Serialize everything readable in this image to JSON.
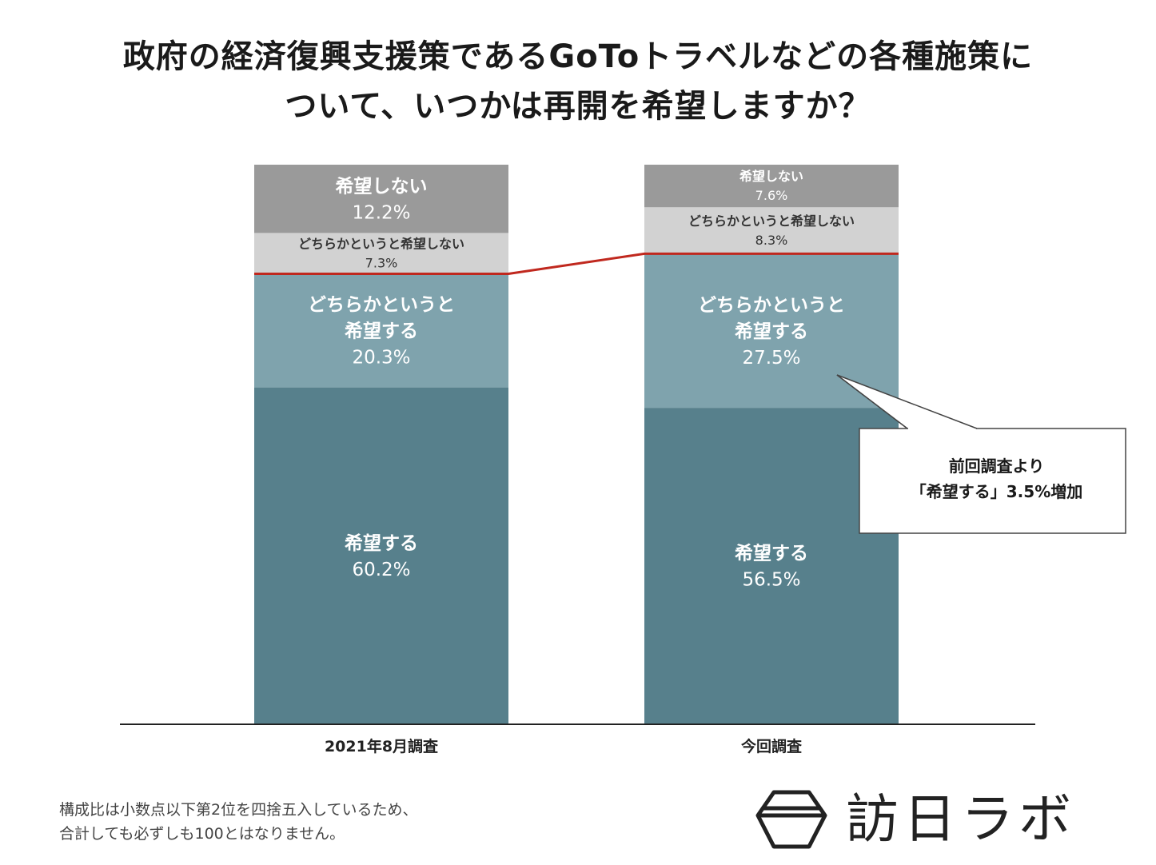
{
  "title": {
    "line1": "政府の経済復興支援策であるGoToトラベルなどの各種施策に",
    "line2": "ついて、いつかは再開を希望しますか？"
  },
  "chart_data": {
    "type": "bar",
    "stacked": true,
    "normalized": true,
    "categories": [
      "2021年8月調査",
      "今回調査"
    ],
    "series": [
      {
        "name": "希望する",
        "label_lines": [
          "希望する"
        ],
        "values": [
          60.2,
          56.5
        ],
        "color": "#57808c",
        "text_color": "#ffffff"
      },
      {
        "name": "どちらかというと希望する",
        "label_lines": [
          "どちらかというと",
          "希望する"
        ],
        "values": [
          20.3,
          27.5
        ],
        "color": "#7fa3ad",
        "text_color": "#ffffff"
      },
      {
        "name": "どちらかというと希望しない",
        "label_lines": [
          "どちらかというと希望しない"
        ],
        "values": [
          7.3,
          8.3
        ],
        "color": "#d2d2d2",
        "text_color": "#333333"
      },
      {
        "name": "希望しない",
        "label_lines": [
          "希望しない"
        ],
        "values": [
          12.2,
          7.6
        ],
        "color": "#9a9a9a",
        "text_color": "#ffffff"
      }
    ],
    "value_suffix": "%",
    "connector_line_color": "#c0281e",
    "callout": {
      "lines": [
        "前回調査より",
        "「希望する」3.5%増加"
      ]
    },
    "legend": "none",
    "grid": false
  },
  "footnote": {
    "line1": "構成比は小数点以下第2位を四捨五入しているため、",
    "line2": "合計しても必ずしも100とはなりません。"
  },
  "logo": {
    "text": "訪日ラボ"
  }
}
